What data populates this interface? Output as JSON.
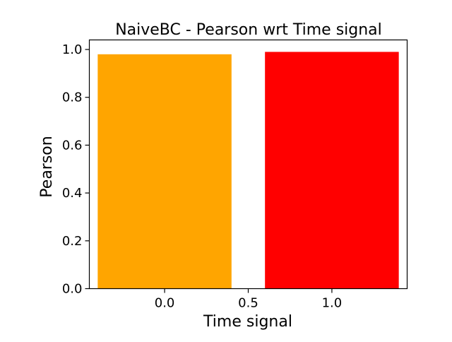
{
  "chart_data": {
    "type": "bar",
    "title": "NaiveBC - Pearson wrt Time signal",
    "xlabel": "Time signal",
    "ylabel": "Pearson",
    "x": [
      0.0,
      1.0
    ],
    "values": [
      0.98,
      0.99
    ],
    "colors": [
      "#FFA500",
      "#FF0000"
    ],
    "bar_width": 0.8,
    "xlim": [
      -0.45,
      1.45
    ],
    "ylim": [
      0.0,
      1.04
    ],
    "xticks": [
      0.0,
      0.5,
      1.0
    ],
    "xtick_labels": [
      "0.0",
      "0.5",
      "1.0"
    ],
    "yticks": [
      0.0,
      0.2,
      0.4,
      0.6,
      0.8,
      1.0
    ],
    "ytick_labels": [
      "0.0",
      "0.2",
      "0.4",
      "0.6",
      "0.8",
      "1.0"
    ],
    "grid": false,
    "legend": "none"
  }
}
